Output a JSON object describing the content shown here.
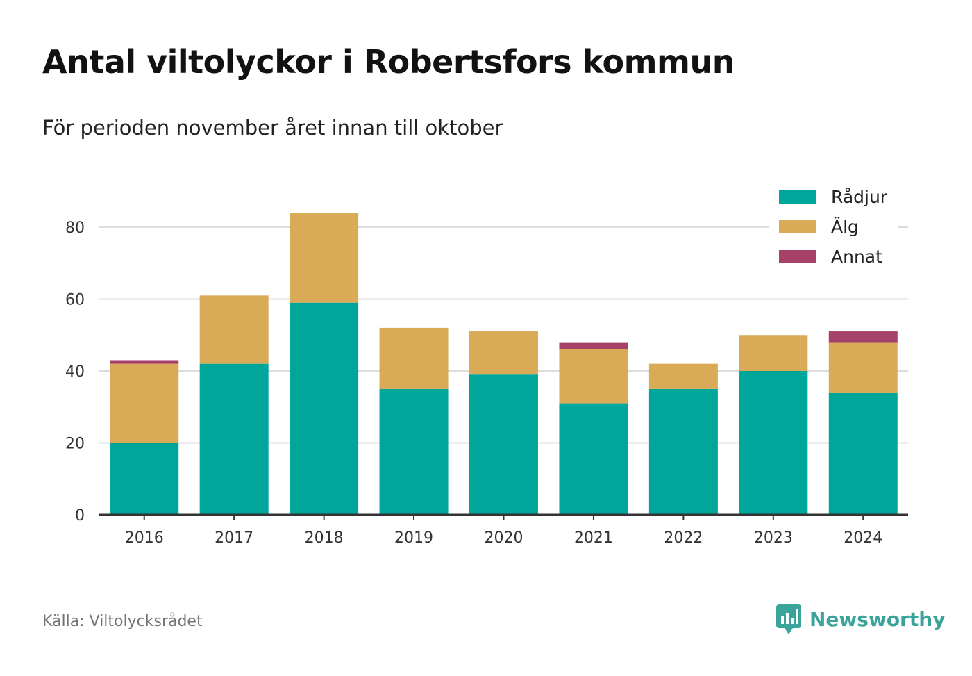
{
  "title": "Antal viltolyckor i Robertsfors kommun",
  "subtitle": "För perioden november året innan till oktober",
  "source": "Källa: Viltolycksrådet",
  "brand": {
    "name": "Newsworthy",
    "icon": "newsworthy-logo-icon",
    "color": "#3aa39a"
  },
  "chart_data": {
    "type": "bar",
    "stacked": true,
    "categories": [
      "2016",
      "2017",
      "2018",
      "2019",
      "2020",
      "2021",
      "2022",
      "2023",
      "2024"
    ],
    "series": [
      {
        "name": "Rådjur",
        "color": "#00a69a",
        "values": [
          20,
          42,
          59,
          35,
          39,
          31,
          35,
          40,
          34
        ]
      },
      {
        "name": "Älg",
        "color": "#d9ab57",
        "values": [
          22,
          19,
          25,
          17,
          12,
          15,
          7,
          10,
          14
        ]
      },
      {
        "name": "Annat",
        "color": "#a6416a",
        "values": [
          1,
          0,
          0,
          0,
          0,
          2,
          0,
          0,
          3
        ]
      }
    ],
    "ylim": [
      0,
      90
    ],
    "yticks": [
      0,
      20,
      40,
      60,
      80
    ],
    "grid": true,
    "legend_position": "top-right",
    "xlabel": "",
    "ylabel": ""
  }
}
